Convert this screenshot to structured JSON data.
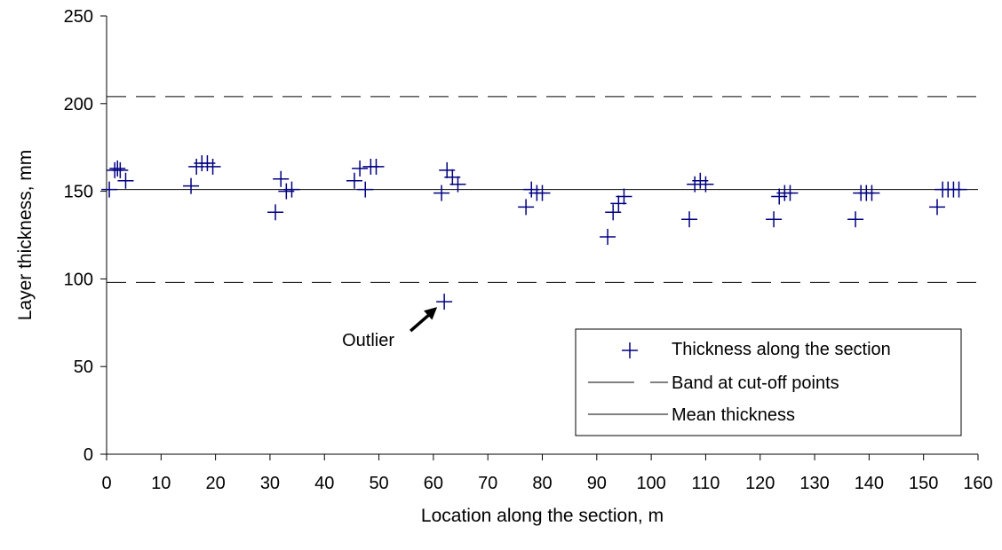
{
  "chart_data": {
    "type": "scatter",
    "xlabel": "Location along the section, m",
    "ylabel": "Layer thickness, mm",
    "xlim": [
      0,
      160
    ],
    "ylim": [
      0,
      250
    ],
    "xticks": [
      0,
      10,
      20,
      30,
      40,
      50,
      60,
      70,
      80,
      90,
      100,
      110,
      120,
      130,
      140,
      150,
      160
    ],
    "yticks": [
      0,
      50,
      100,
      150,
      200,
      250
    ],
    "grid": false,
    "legend_position": "bottom-right",
    "series": [
      {
        "name": "Thickness along the section",
        "marker": "plus",
        "color": "#000080",
        "x": [
          0.5,
          1.5,
          2.0,
          2.5,
          3.5,
          15.5,
          16.5,
          17.5,
          18.5,
          19.5,
          31.0,
          32.0,
          33.0,
          34.0,
          45.5,
          46.5,
          47.5,
          48.5,
          49.5,
          61.5,
          62.5,
          63.5,
          64.5,
          77.0,
          78.0,
          79.0,
          80.0,
          92.0,
          93.0,
          94.0,
          95.0,
          107.0,
          108.0,
          109.0,
          110.0,
          122.5,
          123.5,
          124.5,
          125.5,
          137.5,
          138.5,
          139.5,
          140.5,
          152.5,
          153.5,
          154.5,
          155.5,
          156.5,
          62.0
        ],
        "y": [
          151,
          162,
          163,
          162,
          156,
          153,
          164,
          166,
          166,
          164,
          138,
          157,
          150,
          151,
          156,
          163,
          151,
          164,
          164,
          149,
          162,
          158,
          154,
          141,
          151,
          149,
          149,
          124,
          138,
          143,
          147,
          134,
          154,
          156,
          154,
          134,
          147,
          149,
          149,
          134,
          149,
          149,
          149,
          141,
          151,
          151,
          151,
          151,
          87
        ]
      },
      {
        "name": "Band at cut-off points",
        "style": "dashed",
        "color": "#000000",
        "lines_y": [
          98,
          204
        ]
      },
      {
        "name": "Mean thickness",
        "style": "solid",
        "color": "#000000",
        "y": 151
      }
    ],
    "annotations": [
      {
        "text": "Outlier",
        "x": 62,
        "y": 87
      }
    ]
  }
}
